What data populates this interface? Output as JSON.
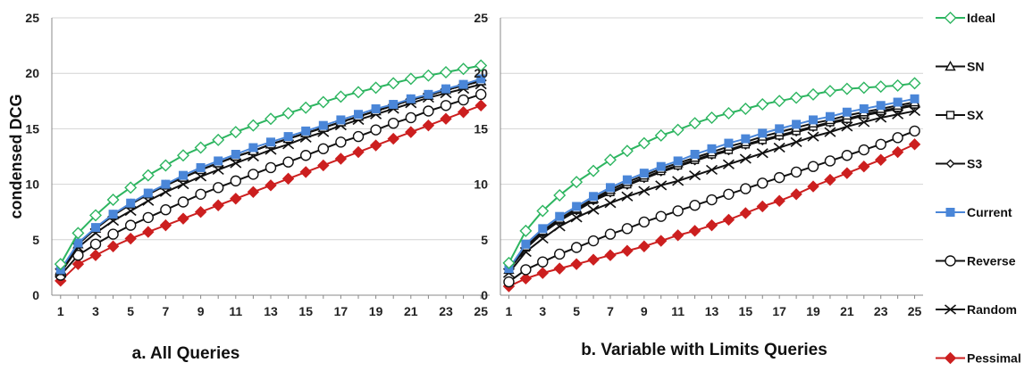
{
  "chart_data": [
    {
      "type": "line",
      "title": "a. All Queries",
      "ylabel": "condensed DCG",
      "xlabel": "",
      "x": [
        1,
        2,
        3,
        4,
        5,
        6,
        7,
        8,
        9,
        10,
        11,
        12,
        13,
        14,
        15,
        16,
        17,
        18,
        19,
        20,
        21,
        22,
        23,
        24,
        25
      ],
      "xticks": [
        1,
        3,
        5,
        7,
        9,
        11,
        13,
        15,
        17,
        19,
        21,
        23,
        25
      ],
      "ylim": [
        0,
        25
      ],
      "yticks": [
        0,
        5,
        10,
        15,
        20,
        25
      ],
      "grid": true,
      "series": [
        {
          "name": "Ideal",
          "values": [
            2.8,
            5.6,
            7.2,
            8.6,
            9.7,
            10.8,
            11.7,
            12.6,
            13.3,
            14.0,
            14.7,
            15.3,
            15.9,
            16.4,
            16.9,
            17.4,
            17.9,
            18.3,
            18.7,
            19.1,
            19.5,
            19.8,
            20.1,
            20.4,
            20.7
          ]
        },
        {
          "name": "SN",
          "values": [
            2.2,
            4.6,
            6.0,
            7.2,
            8.2,
            9.1,
            9.9,
            10.6,
            11.3,
            11.9,
            12.5,
            13.0,
            13.6,
            14.1,
            14.6,
            15.1,
            15.6,
            16.1,
            16.6,
            17.1,
            17.6,
            18.0,
            18.5,
            18.9,
            19.3
          ]
        },
        {
          "name": "SX",
          "values": [
            2.2,
            4.6,
            6.0,
            7.2,
            8.2,
            9.1,
            9.9,
            10.6,
            11.3,
            11.9,
            12.5,
            13.0,
            13.6,
            14.1,
            14.6,
            15.1,
            15.6,
            16.1,
            16.6,
            17.1,
            17.6,
            18.0,
            18.5,
            18.9,
            19.3
          ]
        },
        {
          "name": "S3",
          "values": [
            2.2,
            4.6,
            6.0,
            7.2,
            8.2,
            9.1,
            9.9,
            10.6,
            11.3,
            11.9,
            12.5,
            13.0,
            13.6,
            14.1,
            14.6,
            15.1,
            15.6,
            16.1,
            16.6,
            17.1,
            17.6,
            18.0,
            18.5,
            18.9,
            19.3
          ]
        },
        {
          "name": "Current",
          "values": [
            2.3,
            4.7,
            6.1,
            7.3,
            8.3,
            9.2,
            10.0,
            10.8,
            11.5,
            12.1,
            12.7,
            13.3,
            13.8,
            14.3,
            14.8,
            15.3,
            15.8,
            16.3,
            16.8,
            17.2,
            17.7,
            18.1,
            18.6,
            19.0,
            19.5
          ]
        },
        {
          "name": "Reverse",
          "values": [
            1.8,
            3.6,
            4.6,
            5.5,
            6.3,
            7.0,
            7.7,
            8.4,
            9.1,
            9.7,
            10.3,
            10.9,
            11.5,
            12.0,
            12.6,
            13.2,
            13.8,
            14.3,
            14.9,
            15.5,
            16.0,
            16.6,
            17.1,
            17.6,
            18.1
          ]
        },
        {
          "name": "Random",
          "values": [
            2.0,
            4.3,
            5.6,
            6.7,
            7.6,
            8.5,
            9.3,
            10.0,
            10.7,
            11.3,
            11.9,
            12.5,
            13.1,
            13.6,
            14.2,
            14.7,
            15.3,
            15.8,
            16.3,
            16.8,
            17.3,
            17.8,
            18.2,
            18.6,
            19.0
          ]
        },
        {
          "name": "Pessimal",
          "values": [
            1.3,
            2.8,
            3.6,
            4.4,
            5.1,
            5.7,
            6.3,
            6.9,
            7.5,
            8.1,
            8.7,
            9.3,
            9.9,
            10.5,
            11.1,
            11.7,
            12.3,
            12.9,
            13.5,
            14.1,
            14.7,
            15.3,
            15.9,
            16.5,
            17.1
          ]
        }
      ]
    },
    {
      "type": "line",
      "title": "b. Variable with Limits Queries",
      "ylabel": "",
      "xlabel": "",
      "x": [
        1,
        2,
        3,
        4,
        5,
        6,
        7,
        8,
        9,
        10,
        11,
        12,
        13,
        14,
        15,
        16,
        17,
        18,
        19,
        20,
        21,
        22,
        23,
        24,
        25
      ],
      "xticks": [
        1,
        3,
        5,
        7,
        9,
        11,
        13,
        15,
        17,
        19,
        21,
        23,
        25
      ],
      "ylim": [
        0,
        25
      ],
      "yticks": [
        0,
        5,
        10,
        15,
        20,
        25
      ],
      "grid": true,
      "series": [
        {
          "name": "Ideal",
          "values": [
            2.9,
            5.8,
            7.6,
            9.0,
            10.2,
            11.2,
            12.2,
            13.0,
            13.7,
            14.4,
            14.9,
            15.5,
            16.0,
            16.4,
            16.8,
            17.2,
            17.5,
            17.8,
            18.1,
            18.4,
            18.6,
            18.7,
            18.8,
            18.9,
            19.1
          ]
        },
        {
          "name": "SN",
          "values": [
            2.3,
            4.4,
            5.8,
            6.9,
            7.8,
            8.7,
            9.5,
            10.2,
            10.8,
            11.4,
            11.9,
            12.4,
            12.9,
            13.4,
            13.8,
            14.3,
            14.7,
            15.1,
            15.5,
            15.8,
            16.2,
            16.5,
            16.8,
            17.1,
            17.4
          ]
        },
        {
          "name": "SX",
          "values": [
            2.3,
            4.3,
            5.7,
            6.8,
            7.7,
            8.6,
            9.3,
            10.0,
            10.6,
            11.2,
            11.7,
            12.2,
            12.7,
            13.1,
            13.6,
            14.0,
            14.4,
            14.8,
            15.2,
            15.6,
            15.9,
            16.3,
            16.6,
            16.9,
            17.2
          ]
        },
        {
          "name": "S3",
          "values": [
            2.3,
            4.2,
            5.6,
            6.7,
            7.6,
            8.5,
            9.2,
            9.9,
            10.5,
            11.1,
            11.6,
            12.1,
            12.6,
            13.0,
            13.5,
            13.9,
            14.3,
            14.7,
            15.1,
            15.5,
            15.8,
            16.2,
            16.5,
            16.8,
            17.1
          ]
        },
        {
          "name": "Current",
          "values": [
            2.4,
            4.6,
            6.0,
            7.1,
            8.0,
            8.9,
            9.7,
            10.4,
            11.0,
            11.6,
            12.1,
            12.7,
            13.2,
            13.7,
            14.1,
            14.6,
            15.0,
            15.4,
            15.8,
            16.1,
            16.5,
            16.8,
            17.1,
            17.4,
            17.7
          ]
        },
        {
          "name": "Reverse",
          "values": [
            1.2,
            2.3,
            3.0,
            3.7,
            4.3,
            4.9,
            5.5,
            6.0,
            6.6,
            7.1,
            7.6,
            8.1,
            8.6,
            9.1,
            9.6,
            10.1,
            10.6,
            11.1,
            11.6,
            12.1,
            12.6,
            13.1,
            13.6,
            14.2,
            14.8
          ]
        },
        {
          "name": "Random",
          "values": [
            2.0,
            3.9,
            5.1,
            6.2,
            7.0,
            7.7,
            8.3,
            8.9,
            9.4,
            9.9,
            10.3,
            10.8,
            11.3,
            11.8,
            12.3,
            12.8,
            13.3,
            13.8,
            14.3,
            14.7,
            15.2,
            15.6,
            16.0,
            16.3,
            16.6
          ]
        },
        {
          "name": "Pessimal",
          "values": [
            0.8,
            1.5,
            2.0,
            2.4,
            2.8,
            3.2,
            3.6,
            4.0,
            4.4,
            4.9,
            5.4,
            5.8,
            6.3,
            6.8,
            7.4,
            8.0,
            8.5,
            9.1,
            9.8,
            10.4,
            11.0,
            11.6,
            12.2,
            12.9,
            13.6
          ]
        }
      ]
    }
  ],
  "legend": [
    {
      "name": "Ideal",
      "color": "#2db560",
      "marker": "diamond-open"
    },
    {
      "name": "SN",
      "color": "#111111",
      "marker": "triangle-open"
    },
    {
      "name": "SX",
      "color": "#111111",
      "marker": "square-open"
    },
    {
      "name": "S3",
      "color": "#111111",
      "marker": "diamond-open-small"
    },
    {
      "name": "Current",
      "color": "#4a86d8",
      "marker": "square-filled"
    },
    {
      "name": "Reverse",
      "color": "#111111",
      "marker": "circle-open"
    },
    {
      "name": "Random",
      "color": "#111111",
      "marker": "x"
    },
    {
      "name": "Pessimal",
      "color": "#cc1f1f",
      "marker": "diamond-filled"
    }
  ]
}
